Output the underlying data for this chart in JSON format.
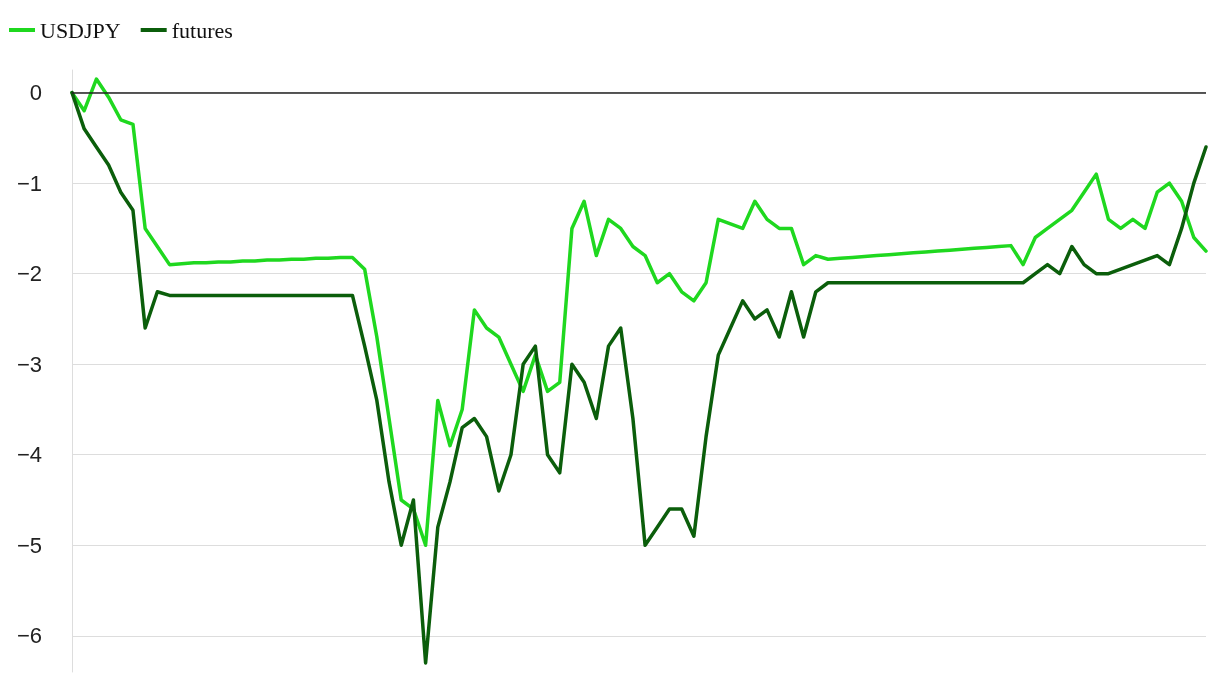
{
  "chart_data": {
    "type": "line",
    "categories": [
      null,
      null,
      null,
      null,
      null,
      null,
      null,
      null,
      null,
      null,
      null,
      null,
      null,
      null,
      null,
      null,
      null,
      null,
      null,
      null,
      null,
      null,
      null,
      null,
      null,
      null,
      null,
      null,
      null,
      null,
      null,
      null,
      null,
      null,
      null,
      null,
      null,
      null,
      null,
      null,
      null,
      null,
      null,
      null,
      null,
      null,
      null,
      null,
      null,
      null,
      null,
      null,
      null,
      null,
      null,
      null,
      null,
      null,
      null,
      null,
      null,
      null,
      null,
      null,
      null,
      null,
      null,
      null,
      null,
      null,
      null,
      null,
      null,
      null,
      null,
      null,
      null,
      null,
      null,
      null,
      null,
      null,
      null,
      null,
      null,
      null,
      null,
      null,
      null,
      null,
      null,
      null,
      null,
      null
    ],
    "series": [
      {
        "name": "USDJPY",
        "color": "#1fd81f",
        "values": [
          0,
          -0.2,
          0.15,
          -0.05,
          -0.3,
          -0.35,
          -1.5,
          -1.7,
          -1.9,
          -1.89,
          -1.88,
          -1.88,
          -1.87,
          -1.87,
          -1.86,
          -1.86,
          -1.85,
          -1.85,
          -1.84,
          -1.84,
          -1.83,
          -1.83,
          -1.82,
          -1.82,
          -1.95,
          -2.7,
          -3.6,
          -4.5,
          -4.6,
          -5.0,
          -3.4,
          -3.9,
          -3.5,
          -2.4,
          -2.6,
          -2.7,
          -3.0,
          -3.3,
          -2.9,
          -3.3,
          -3.2,
          -1.5,
          -1.2,
          -1.8,
          -1.4,
          -1.5,
          -1.7,
          -1.8,
          -2.1,
          -2.0,
          -2.2,
          -2.3,
          -2.1,
          -1.4,
          -1.45,
          -1.5,
          -1.2,
          -1.4,
          -1.5,
          -1.5,
          -1.9,
          -1.8,
          -1.84,
          -1.83,
          -1.82,
          -1.81,
          -1.8,
          -1.79,
          -1.78,
          -1.77,
          -1.76,
          -1.75,
          -1.74,
          -1.73,
          -1.72,
          -1.71,
          -1.7,
          -1.69,
          -1.9,
          -1.6,
          -1.5,
          -1.4,
          -1.3,
          -1.1,
          -0.9,
          -1.4,
          -1.5,
          -1.4,
          -1.5,
          -1.1,
          -1.0,
          -1.2,
          -1.6,
          -1.75
        ]
      },
      {
        "name": "futures",
        "color": "#0b5e0b",
        "values": [
          0,
          -0.4,
          -0.6,
          -0.8,
          -1.1,
          -1.3,
          -2.6,
          -2.2,
          -2.24,
          -2.24,
          -2.24,
          -2.24,
          -2.24,
          -2.24,
          -2.24,
          -2.24,
          -2.24,
          -2.24,
          -2.24,
          -2.24,
          -2.24,
          -2.24,
          -2.24,
          -2.24,
          -2.8,
          -3.4,
          -4.3,
          -5.0,
          -4.5,
          -6.3,
          -4.8,
          -4.3,
          -3.7,
          -3.6,
          -3.8,
          -4.4,
          -4.0,
          -3.0,
          -2.8,
          -4.0,
          -4.2,
          -3.0,
          -3.2,
          -3.6,
          -2.8,
          -2.6,
          -3.6,
          -5.0,
          -4.8,
          -4.6,
          -4.6,
          -4.9,
          -3.8,
          -2.9,
          -2.6,
          -2.3,
          -2.5,
          -2.4,
          -2.7,
          -2.2,
          -2.7,
          -2.2,
          -2.1,
          -2.1,
          -2.1,
          -2.1,
          -2.1,
          -2.1,
          -2.1,
          -2.1,
          -2.1,
          -2.1,
          -2.1,
          -2.1,
          -2.1,
          -2.1,
          -2.1,
          -2.1,
          -2.1,
          -2.0,
          -1.9,
          -2.0,
          -1.7,
          -1.9,
          -2.0,
          -2.0,
          -1.95,
          -1.9,
          -1.85,
          -1.8,
          -1.9,
          -1.5,
          -1.0,
          -0.6
        ]
      }
    ],
    "ylim": [
      -6.4,
      0.25
    ],
    "yticks": [
      -6,
      -5,
      -4,
      -3,
      -2,
      -1,
      0
    ],
    "grid": "y",
    "legend": "top left",
    "marker": "none",
    "line_style": "solid",
    "ref_lines": [
      {
        "axis": "y",
        "value": 0,
        "color": "#222222"
      }
    ]
  }
}
